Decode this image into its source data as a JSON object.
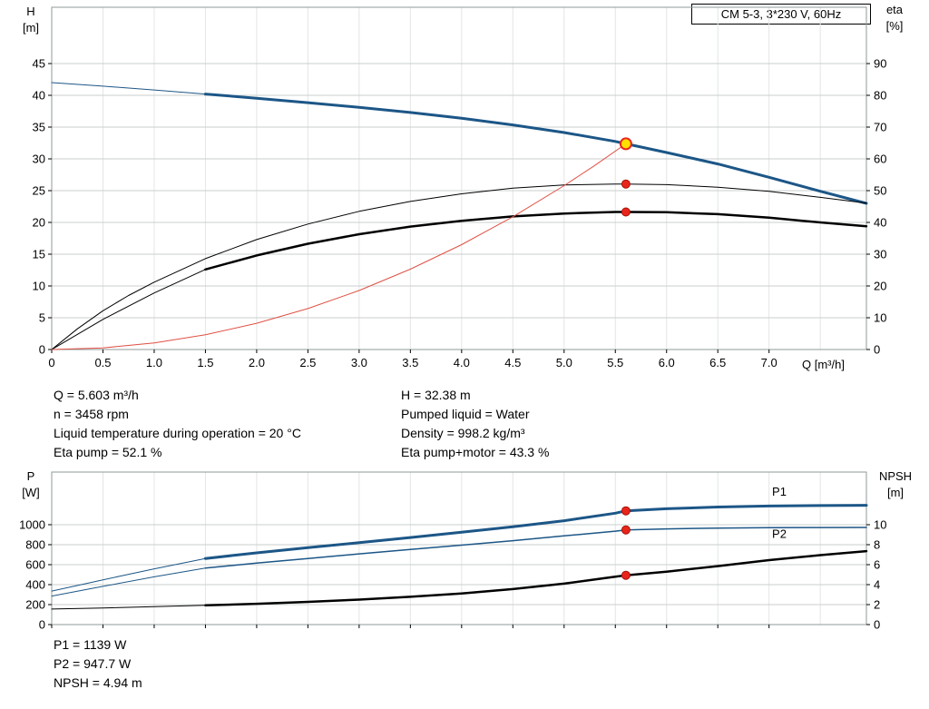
{
  "title_box": {
    "label": "CM 5-3, 3*230 V, 60Hz"
  },
  "axis_labels": {
    "h": [
      "H",
      "[m]"
    ],
    "eta": [
      "eta",
      "[%]"
    ],
    "q": "Q [m³/h]",
    "p": [
      "P",
      "[W]"
    ],
    "npsh": [
      "NPSH",
      "[m]"
    ]
  },
  "operating_point": {
    "left": [
      "Q = 5.603 m³/h",
      "n = 3458 rpm",
      "Liquid temperature during operation = 20 °C",
      "Eta pump = 52.1 %"
    ],
    "right": [
      "H = 32.38 m",
      "Pumped liquid = Water",
      "Density = 998.2 kg/m³",
      "Eta pump+motor = 43.3 %"
    ]
  },
  "power_results": [
    "P1 = 1139 W",
    "P2 = 947.7 W",
    "NPSH = 4.94 m"
  ],
  "chart_data": [
    {
      "type": "line",
      "name": "qh-eta-chart",
      "x": {
        "min": 0,
        "max": 7.95,
        "axis_label": "Q [m³/h]",
        "tick_values": [
          0,
          0.5,
          1,
          1.5,
          2,
          2.5,
          3,
          3.5,
          4,
          4.5,
          5,
          5.5,
          6,
          6.5,
          7
        ],
        "tick_labels": [
          "0",
          "0.5",
          "1.0",
          "1.5",
          "2.0",
          "2.5",
          "3.0",
          "3.5",
          "4.0",
          "4.5",
          "5.0",
          "5.5",
          "6.0",
          "6.5",
          "7.0"
        ],
        "grid_values": [
          0.5,
          1,
          1.5,
          2,
          2.5,
          3,
          3.5,
          4,
          4.5,
          5,
          5.5,
          6,
          6.5,
          7,
          7.5
        ]
      },
      "y_left": {
        "min": 0,
        "max": 53.86,
        "axis_label": "H [m]",
        "tick_values": [
          0,
          5,
          10,
          15,
          20,
          25,
          30,
          35,
          40,
          45
        ],
        "tick_labels": [
          "0",
          "5",
          "10",
          "15",
          "20",
          "25",
          "30",
          "35",
          "40",
          "45"
        ]
      },
      "y_right": {
        "min": 0,
        "max": 107.72,
        "axis_label": "eta [%]",
        "tick_values": [
          0,
          10,
          20,
          30,
          40,
          50,
          60,
          70,
          80,
          90
        ],
        "tick_labels": [
          "0",
          "10",
          "20",
          "30",
          "40",
          "50",
          "60",
          "70",
          "80",
          "90"
        ]
      },
      "style": {
        "frame": "#8f9a99",
        "grid_h": "#c9cfce",
        "grid_v": "#e2e6e5",
        "tick": "#000000"
      },
      "series": [
        {
          "name": "qh-curve-lead",
          "axis": "left",
          "color": "#1c5687",
          "width": 1,
          "x": [
            0,
            0.5,
            1,
            1.5
          ],
          "y": [
            42.0,
            41.45,
            40.85,
            40.2
          ]
        },
        {
          "name": "qh-curve",
          "axis": "left",
          "color": "#1c5687",
          "width": 3,
          "x": [
            1.5,
            2,
            2.5,
            3,
            3.5,
            4,
            4.5,
            5,
            5.5,
            5.603,
            6,
            6.5,
            7,
            7.5,
            7.95
          ],
          "y": [
            40.2,
            39.55,
            38.85,
            38.1,
            37.3,
            36.4,
            35.35,
            34.15,
            32.75,
            32.38,
            31.0,
            29.2,
            27.1,
            24.9,
            23.0
          ]
        },
        {
          "name": "eta-pump-curve",
          "axis": "right",
          "color": "#000000",
          "width": 1,
          "x": [
            0,
            0.25,
            0.5,
            0.75,
            1,
            1.5,
            2,
            2.5,
            3,
            3.5,
            4,
            4.5,
            5,
            5.5,
            5.603,
            6,
            6.5,
            7,
            7.5,
            7.95
          ],
          "y": [
            0,
            6.5,
            12.2,
            17.0,
            21.2,
            28.6,
            34.6,
            39.5,
            43.5,
            46.6,
            49.0,
            50.8,
            51.8,
            52.1,
            52.1,
            51.9,
            51.1,
            49.8,
            47.9,
            46.1
          ]
        },
        {
          "name": "eta-pump-motor-curve-lead",
          "axis": "right",
          "color": "#000000",
          "width": 1,
          "x": [
            0,
            0.5,
            1,
            1.5
          ],
          "y": [
            0,
            9.5,
            17.8,
            25.2
          ]
        },
        {
          "name": "eta-pump-motor-curve",
          "axis": "right",
          "color": "#000000",
          "width": 2.5,
          "x": [
            1.5,
            2,
            2.5,
            3,
            3.5,
            4,
            4.5,
            5,
            5.5,
            5.603,
            6,
            6.5,
            7,
            7.5,
            7.95
          ],
          "y": [
            25.2,
            29.6,
            33.3,
            36.3,
            38.7,
            40.5,
            41.9,
            42.8,
            43.3,
            43.3,
            43.2,
            42.6,
            41.5,
            40.0,
            38.8
          ]
        },
        {
          "name": "system-curve",
          "axis": "left",
          "color": "#df5145",
          "width": 1,
          "x": [
            0,
            0.5,
            1,
            1.5,
            2,
            2.5,
            3,
            3.5,
            4,
            4.5,
            5,
            5.3,
            5.603
          ],
          "y": [
            0,
            0.26,
            1.03,
            2.32,
            4.13,
            6.45,
            9.28,
            12.64,
            16.5,
            20.89,
            25.79,
            28.97,
            32.38
          ]
        }
      ],
      "markers": [
        {
          "name": "eta-pump-duty-point",
          "axis": "right",
          "x": 5.603,
          "y": 52.1,
          "r": 4.5,
          "fill": "#e8251a",
          "stroke": "#aa1208",
          "stroke_width": 1
        },
        {
          "name": "eta-pump-motor-duty-point",
          "axis": "right",
          "x": 5.603,
          "y": 43.3,
          "r": 4.5,
          "fill": "#e8251a",
          "stroke": "#aa1208",
          "stroke_width": 1
        },
        {
          "name": "duty-point",
          "axis": "left",
          "x": 5.603,
          "y": 32.38,
          "r": 6,
          "fill": "#ffe000",
          "stroke": "#e8251a",
          "stroke_width": 2
        }
      ],
      "annotations": []
    },
    {
      "type": "line",
      "name": "power-npsh-chart",
      "x": {
        "min": 0,
        "max": 7.95,
        "axis_label": "",
        "tick_values": [
          0,
          0.5,
          1,
          1.5,
          2,
          2.5,
          3,
          3.5,
          4,
          4.5,
          5,
          5.5,
          6,
          6.5,
          7
        ],
        "tick_labels": [
          "",
          "",
          "",
          "",
          "",
          "",
          "",
          "",
          "",
          "",
          "",
          "",
          "",
          "",
          ""
        ],
        "grid_values": [
          0.5,
          1,
          1.5,
          2,
          2.5,
          3,
          3.5,
          4,
          4.5,
          5,
          5.5,
          6,
          6.5,
          7,
          7.5
        ]
      },
      "y_left": {
        "min": 0,
        "max": 1527,
        "axis_label": "P [W]",
        "tick_values": [
          0,
          200,
          400,
          600,
          800,
          1000
        ],
        "tick_labels": [
          "0",
          "200",
          "400",
          "600",
          "800",
          "1000"
        ]
      },
      "y_right": {
        "min": 0,
        "max": 15.27,
        "axis_label": "NPSH [m]",
        "tick_values": [
          0,
          2,
          4,
          6,
          8,
          10
        ],
        "tick_labels": [
          "0",
          "2",
          "4",
          "6",
          "8",
          "10"
        ]
      },
      "style": {
        "frame": "#8f9a99",
        "grid_h": "#c9cfce",
        "grid_v": "#e2e6e5",
        "tick": "#000000"
      },
      "series": [
        {
          "name": "p1-curve-lead",
          "axis": "left",
          "color": "#1c5687",
          "width": 1,
          "x": [
            0,
            0.5,
            1,
            1.5
          ],
          "y": [
            335,
            448,
            558,
            662
          ]
        },
        {
          "name": "p1-curve",
          "axis": "left",
          "color": "#1c5687",
          "width": 3,
          "x": [
            1.5,
            2,
            2.5,
            3,
            3.5,
            4,
            4.5,
            5,
            5.5,
            5.603,
            6,
            6.5,
            7,
            7.5,
            7.95
          ],
          "y": [
            662,
            718,
            770,
            820,
            872,
            925,
            980,
            1040,
            1115,
            1139,
            1160,
            1177,
            1187,
            1192,
            1194
          ]
        },
        {
          "name": "p2-curve-lead",
          "axis": "left",
          "color": "#1c5687",
          "width": 1,
          "x": [
            0,
            0.5,
            1,
            1.5
          ],
          "y": [
            285,
            383,
            478,
            565
          ]
        },
        {
          "name": "p2-curve",
          "axis": "left",
          "color": "#1c5687",
          "width": 1.5,
          "x": [
            1.5,
            2,
            2.5,
            3,
            3.5,
            4,
            4.5,
            5,
            5.5,
            5.603,
            6,
            6.5,
            7,
            7.5,
            7.95
          ],
          "y": [
            565,
            615,
            662,
            708,
            752,
            795,
            840,
            888,
            935,
            947.7,
            958,
            966,
            970,
            972,
            973
          ]
        },
        {
          "name": "npsh-curve-lead",
          "axis": "right",
          "color": "#000000",
          "width": 1,
          "x": [
            0,
            0.5,
            1,
            1.5
          ],
          "y": [
            1.55,
            1.66,
            1.79,
            1.93
          ]
        },
        {
          "name": "npsh-curve",
          "axis": "right",
          "color": "#000000",
          "width": 2.5,
          "x": [
            1.5,
            2,
            2.5,
            3,
            3.5,
            4,
            4.5,
            5,
            5.5,
            5.603,
            6,
            6.5,
            7,
            7.5,
            7.95
          ],
          "y": [
            1.93,
            2.08,
            2.27,
            2.5,
            2.78,
            3.12,
            3.55,
            4.1,
            4.8,
            4.94,
            5.3,
            5.85,
            6.45,
            6.95,
            7.35
          ]
        }
      ],
      "markers": [
        {
          "name": "p1-duty-point",
          "axis": "left",
          "x": 5.603,
          "y": 1139,
          "r": 4.5,
          "fill": "#e8251a",
          "stroke": "#aa1208",
          "stroke_width": 1
        },
        {
          "name": "p2-duty-point",
          "axis": "left",
          "x": 5.603,
          "y": 947.7,
          "r": 4.5,
          "fill": "#e8251a",
          "stroke": "#aa1208",
          "stroke_width": 1
        },
        {
          "name": "npsh-duty-point",
          "axis": "right",
          "x": 5.603,
          "y": 4.94,
          "r": 4.5,
          "fill": "#e8251a",
          "stroke": "#aa1208",
          "stroke_width": 1
        }
      ],
      "annotations": [
        {
          "name": "p1-curve-label",
          "text": "P1",
          "axis": "left",
          "x": 7.1,
          "y": 1290,
          "color": "#2066b0",
          "font_size": 14
        },
        {
          "name": "p2-curve-label",
          "text": "P2",
          "axis": "left",
          "x": 7.1,
          "y": 870,
          "color": "#2066b0",
          "font_size": 14
        }
      ]
    }
  ]
}
